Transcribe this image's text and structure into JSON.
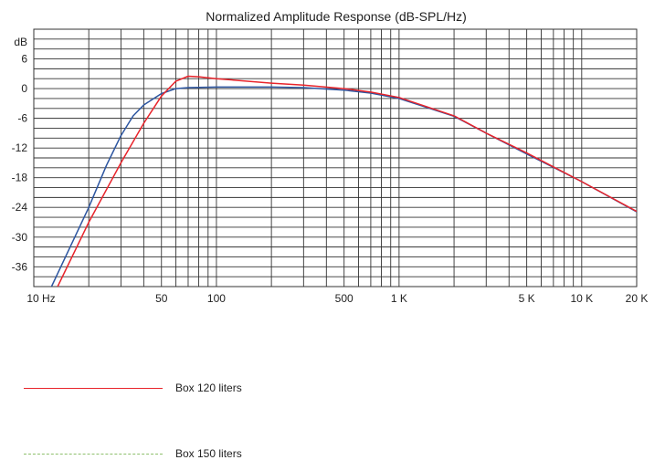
{
  "chart_data": {
    "type": "line",
    "title": "Normalized Amplitude Response (dB-SPL/Hz)",
    "x_scale": "log",
    "xlim": [
      10,
      20000
    ],
    "ylim": [
      -40,
      12
    ],
    "ylabel": "dB",
    "y_ticks": [
      6,
      0,
      -6,
      -12,
      -18,
      -24,
      -30,
      -36
    ],
    "x_tick_labels": [
      {
        "value": 10,
        "label": "10 Hz"
      },
      {
        "value": 50,
        "label": "50"
      },
      {
        "value": 100,
        "label": "100"
      },
      {
        "value": 500,
        "label": "500"
      },
      {
        "value": 1000,
        "label": "1 K"
      },
      {
        "value": 5000,
        "label": "5 K"
      },
      {
        "value": 10000,
        "label": "10 K"
      },
      {
        "value": 20000,
        "label": "20 K"
      }
    ],
    "grid": true,
    "legend_position": "below",
    "series": [
      {
        "name": "Box 120 liters",
        "color": "#e8242b",
        "style": "solid",
        "x": [
          13.5,
          20,
          30,
          40,
          50,
          60,
          70,
          80,
          100,
          200,
          300,
          500,
          700,
          1000,
          2000,
          3000,
          5000,
          7000,
          10000,
          20000
        ],
        "y": [
          -40,
          -27,
          -15,
          -7,
          -1.5,
          1.5,
          2.5,
          2.4,
          2,
          1.1,
          0.7,
          0,
          -0.7,
          -1.8,
          -5.5,
          -9,
          -13,
          -15.8,
          -18.8,
          -24.8
        ]
      },
      {
        "name": "Box 150 liters",
        "color": "#8ec06c",
        "style": "dashed",
        "x": [
          12.5,
          20,
          25,
          30,
          35,
          40,
          50,
          60,
          70,
          100,
          200,
          300,
          500,
          700,
          1000,
          2000,
          3000,
          5000,
          7000,
          10000,
          20000
        ],
        "y": [
          -40,
          -24,
          -15.5,
          -9.5,
          -5.5,
          -3.3,
          -1,
          0,
          0.2,
          0.3,
          0.3,
          0.2,
          -0.3,
          -0.9,
          -2,
          -5.6,
          -9,
          -13.2,
          -15.9,
          -18.8,
          -24.9
        ]
      }
    ]
  }
}
